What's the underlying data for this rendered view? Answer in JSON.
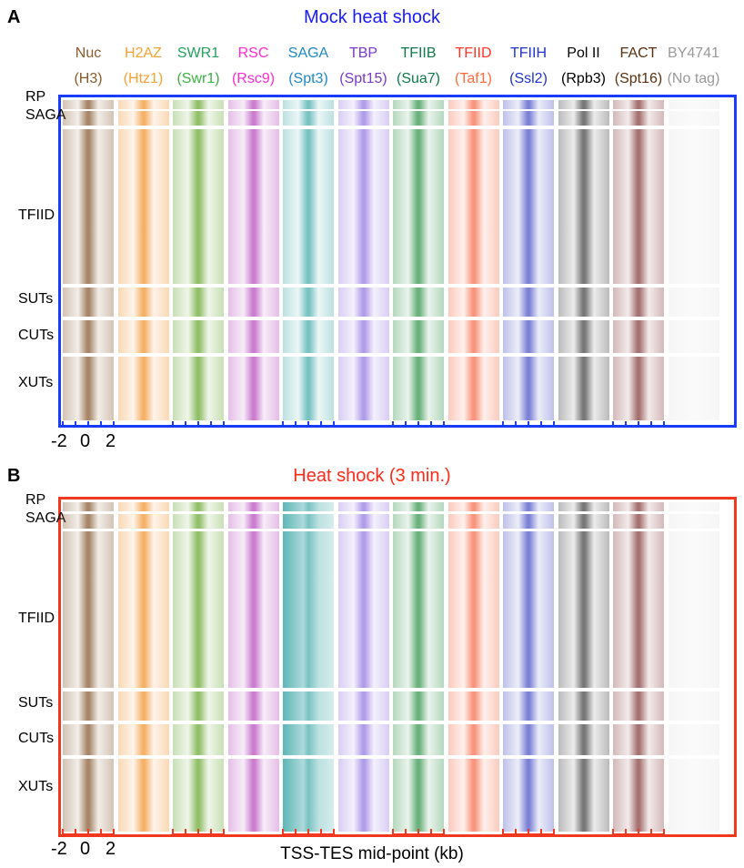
{
  "panel_a": {
    "letter": "A",
    "title": "Mock heat shock",
    "title_color": "#1a1aff",
    "frame_color": "#1a3cff"
  },
  "panel_b": {
    "letter": "B",
    "title": "Heat shock (3 min.)",
    "title_color": "#ff2a1a",
    "frame_color": "#f2381e"
  },
  "columns": [
    {
      "name": "Nuc",
      "tag": "(H3)",
      "color": "#8b5a2b",
      "tag_color": "#8b5a2b",
      "heat": "#7a4a1c"
    },
    {
      "name": "H2AZ",
      "tag": "(Htz1)",
      "color": "#f5a232",
      "tag_color": "#f5a232",
      "heat": "#f08a1e"
    },
    {
      "name": "SWR1",
      "tag": "(Swr1)",
      "color": "#22a35a",
      "tag_color": "#3cb043",
      "heat": "#5aa020"
    },
    {
      "name": "RSC",
      "tag": "(Rsc9)",
      "color": "#ff2ad4",
      "tag_color": "#ff2ad4",
      "heat": "#b03ab8"
    },
    {
      "name": "SAGA",
      "tag": "(Spt3)",
      "color": "#1e88c8",
      "tag_color": "#1e88c8",
      "heat": "#35a3a3"
    },
    {
      "name": "TBP",
      "tag": "(Spt15)",
      "color": "#7a3acb",
      "tag_color": "#7a3acb",
      "heat": "#8a6ae0"
    },
    {
      "name": "TFIIB",
      "tag": "(Sua7)",
      "color": "#0e7a4a",
      "tag_color": "#0e7a4a",
      "heat": "#1f8a3a"
    },
    {
      "name": "TFIID",
      "tag": "(Taf1)",
      "color": "#ff3322",
      "tag_color": "#ff6a3a",
      "heat": "#f5603a"
    },
    {
      "name": "TFIIH",
      "tag": "(Ssl2)",
      "color": "#2233cc",
      "tag_color": "#2233cc",
      "heat": "#3a42c0"
    },
    {
      "name": "Pol II",
      "tag": "(Rpb3)",
      "color": "#000000",
      "tag_color": "#000000",
      "heat": "#333333"
    },
    {
      "name": "FACT",
      "tag": "(Spt16)",
      "color": "#5a3010",
      "tag_color": "#5a3010",
      "heat": "#7a2a2a"
    },
    {
      "name": "BY4741",
      "tag": "(No tag)",
      "color": "#999999",
      "tag_color": "#999999",
      "heat": "#bbbbbb"
    }
  ],
  "rows": [
    "RP",
    "SAGA",
    "TFIID",
    "SUTs",
    "CUTs",
    "XUTs"
  ],
  "x_ticks": [
    "-2",
    "0",
    "2"
  ],
  "x_axis_title": "TSS-TES mid-point (kb)"
}
